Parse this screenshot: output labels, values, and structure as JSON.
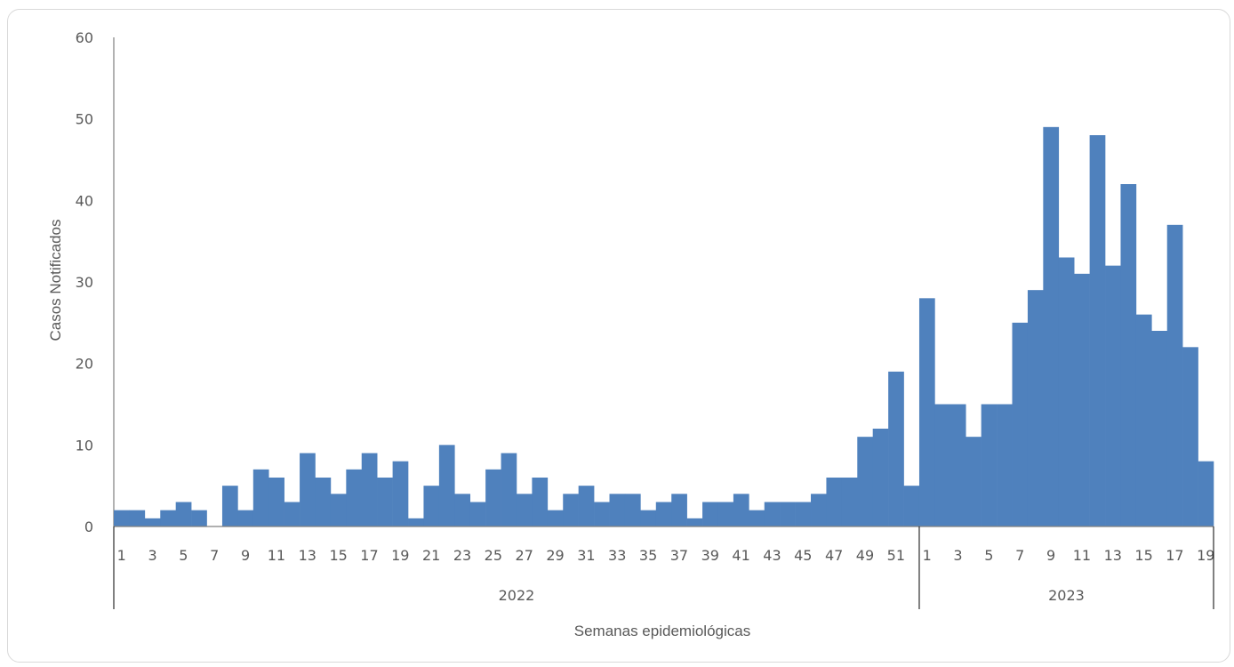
{
  "chart_data": {
    "type": "bar",
    "xlabel": "Semanas epidemiológicas",
    "ylabel": "Casos Notificados",
    "ylim": [
      0,
      60
    ],
    "yticks": [
      0,
      10,
      20,
      30,
      40,
      50,
      60
    ],
    "grid": false,
    "bar_color": "#4f81bd",
    "groups": [
      {
        "year": "2022",
        "weeks": [
          1,
          2,
          3,
          4,
          5,
          6,
          7,
          8,
          9,
          10,
          11,
          12,
          13,
          14,
          15,
          16,
          17,
          18,
          19,
          20,
          21,
          22,
          23,
          24,
          25,
          26,
          27,
          28,
          29,
          30,
          31,
          32,
          33,
          34,
          35,
          36,
          37,
          38,
          39,
          40,
          41,
          42,
          43,
          44,
          45,
          46,
          47,
          48,
          49,
          50,
          51,
          52
        ],
        "values": [
          2,
          2,
          1,
          2,
          3,
          2,
          0,
          5,
          2,
          7,
          6,
          3,
          9,
          6,
          4,
          7,
          9,
          6,
          8,
          1,
          5,
          10,
          4,
          3,
          7,
          9,
          4,
          6,
          2,
          4,
          5,
          3,
          4,
          4,
          2,
          3,
          4,
          1,
          3,
          3,
          4,
          2,
          3,
          3,
          3,
          4,
          6,
          6,
          11,
          12,
          19,
          5
        ]
      },
      {
        "year": "2023",
        "weeks": [
          1,
          2,
          3,
          4,
          5,
          6,
          7,
          8,
          9,
          10,
          11,
          12,
          13,
          14,
          15,
          16,
          17,
          18,
          19
        ],
        "values": [
          28,
          15,
          15,
          11,
          15,
          15,
          25,
          29,
          49,
          33,
          31,
          48,
          32,
          42,
          26,
          24,
          37,
          22,
          8
        ]
      }
    ]
  }
}
